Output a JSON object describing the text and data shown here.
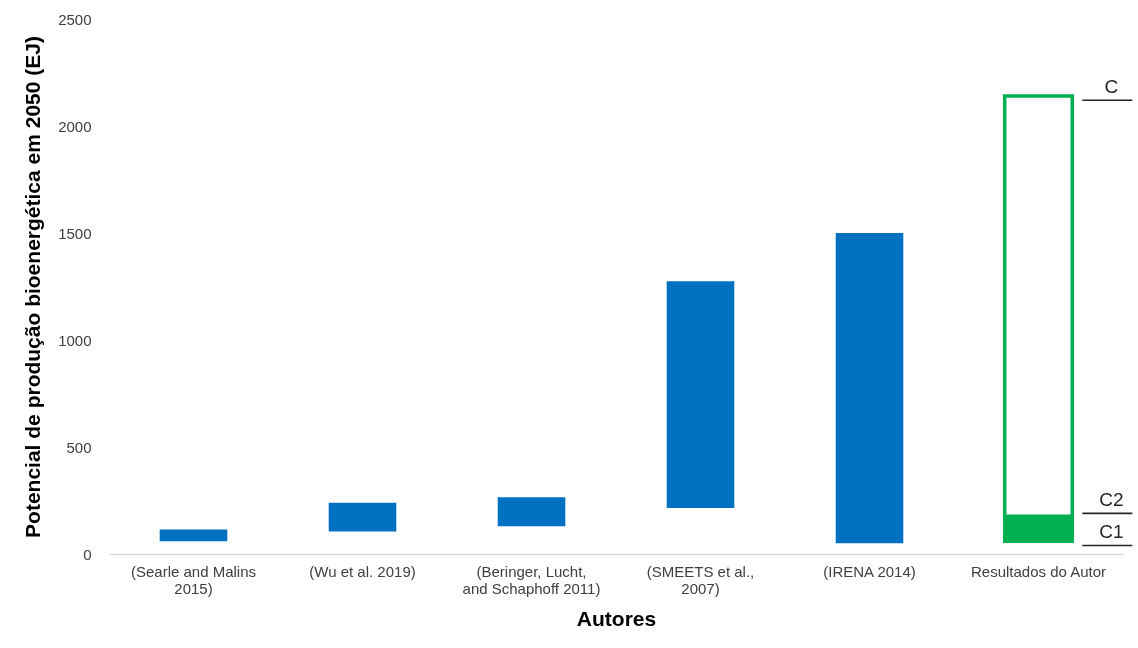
{
  "chart_data": {
    "type": "bar",
    "xlabel": "Autores",
    "ylabel": "Potencial de produção bioenergética em 2050 (EJ)",
    "categories": [
      "(Searle and Malins 2015)",
      "(Wu et al. 2019)",
      "(Beringer, Lucht, and Schaphoff 2011)",
      "(SMEETS et al., 2007)",
      "(IRENA 2014)",
      "Resultados do Autor"
    ],
    "series": [
      {
        "color": "#0070c0",
        "base": [
          60,
          105,
          130,
          215,
          50,
          null
        ],
        "values": [
          55,
          135,
          135,
          1060,
          1450,
          null
        ]
      },
      {
        "color": "#00b050",
        "base": [
          null,
          null,
          null,
          null,
          null,
          60
        ],
        "values": [
          null,
          null,
          null,
          null,
          null,
          125
        ]
      },
      {
        "color": "#00b050",
        "line_style": "solid",
        "base": [
          null,
          null,
          null,
          null,
          null,
          60
        ],
        "values": [
          null,
          null,
          null,
          null,
          null,
          2080
        ]
      }
    ],
    "ylim": [
      0,
      2500
    ],
    "yticks": [
      0,
      500,
      1000,
      1500,
      2000,
      2500
    ],
    "ref_lines": [
      {
        "axis": "y",
        "value": 2120,
        "label": "C",
        "color": "#262626"
      },
      {
        "axis": "y",
        "value": 190,
        "label": "C2",
        "color": "#262626"
      },
      {
        "axis": "y",
        "value": 40,
        "label": "C1",
        "color": "#262626"
      }
    ]
  }
}
